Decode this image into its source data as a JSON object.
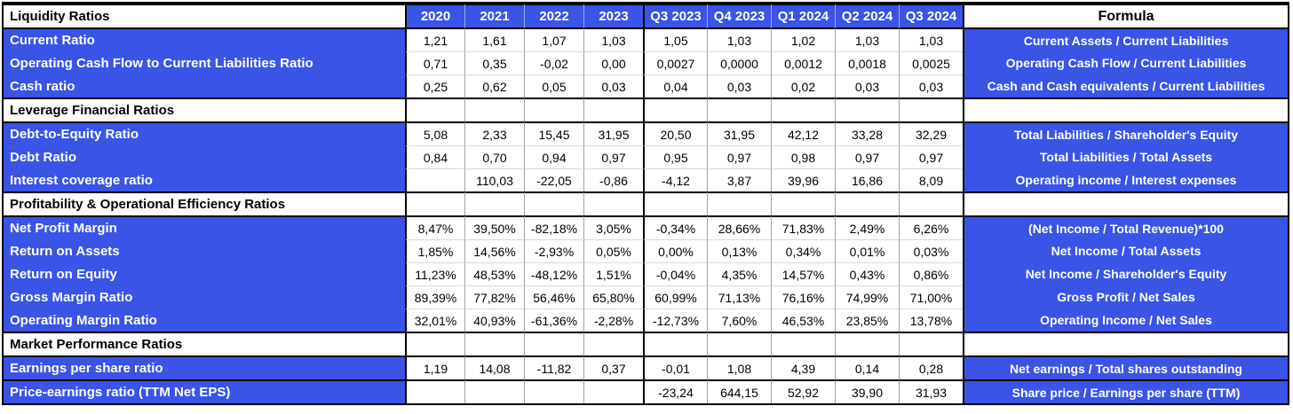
{
  "colors": {
    "accent_blue": "#3A54E6",
    "grid_black": "#000000",
    "grid_gray": "#a3a3a3",
    "grid_light": "#d8d8d8",
    "header_text_on_blue": "#ffffff",
    "header_text_on_white": "#000000"
  },
  "header": {
    "columns": [
      "2020",
      "2021",
      "2022",
      "2023",
      "Q3 2023",
      "Q4 2023",
      "Q1 2024",
      "Q2 2024",
      "Q3 2024"
    ],
    "formula_label": "Formula"
  },
  "sections": [
    {
      "title": "Liquidity Ratios",
      "rows": [
        {
          "name": "Current Ratio",
          "values": [
            "1,21",
            "1,61",
            "1,07",
            "1,03",
            "1,05",
            "1,03",
            "1,02",
            "1,03",
            "1,03"
          ],
          "formula": "Current Assets / Current Liabilities"
        },
        {
          "name": "Operating Cash Flow to Current Liabilities Ratio",
          "values": [
            "0,71",
            "0,35",
            "-0,02",
            "0,00",
            "0,0027",
            "0,0000",
            "0,0012",
            "0,0018",
            "0,0025"
          ],
          "formula": "Operating Cash Flow / Current Liabilities"
        },
        {
          "name": "Cash ratio",
          "values": [
            "0,25",
            "0,62",
            "0,05",
            "0,03",
            "0,04",
            "0,03",
            "0,02",
            "0,03",
            "0,03"
          ],
          "formula": "Cash and Cash equivalents / Current Liabilities"
        }
      ]
    },
    {
      "title": "Leverage Financial Ratios",
      "rows": [
        {
          "name": "Debt-to-Equity Ratio",
          "values": [
            "5,08",
            "2,33",
            "15,45",
            "31,95",
            "20,50",
            "31,95",
            "42,12",
            "33,28",
            "32,29"
          ],
          "formula": "Total Liabilities / Shareholder's Equity"
        },
        {
          "name": "Debt Ratio",
          "values": [
            "0,84",
            "0,70",
            "0,94",
            "0,97",
            "0,95",
            "0,97",
            "0,98",
            "0,97",
            "0,97"
          ],
          "formula": "Total Liabilities / Total Assets"
        },
        {
          "name": "Interest coverage ratio",
          "values": [
            "",
            "110,03",
            "-22,05",
            "-0,86",
            "-4,12",
            "3,87",
            "39,96",
            "16,86",
            "8,09"
          ],
          "formula": "Operating income / Interest expenses"
        }
      ]
    },
    {
      "title": "Profitability & Operational Efficiency Ratios",
      "rows": [
        {
          "name": "Net Profit Margin",
          "values": [
            "8,47%",
            "39,50%",
            "-82,18%",
            "3,05%",
            "-0,34%",
            "28,66%",
            "71,83%",
            "2,49%",
            "6,26%"
          ],
          "formula": "(Net Income / Total Revenue)*100"
        },
        {
          "name": "Return on Assets",
          "values": [
            "1,85%",
            "14,56%",
            "-2,93%",
            "0,05%",
            "0,00%",
            "0,13%",
            "0,34%",
            "0,01%",
            "0,03%"
          ],
          "formula": "Net Income / Total Assets"
        },
        {
          "name": "Return on Equity",
          "values": [
            "11,23%",
            "48,53%",
            "-48,12%",
            "1,51%",
            "-0,04%",
            "4,35%",
            "14,57%",
            "0,43%",
            "0,86%"
          ],
          "formula": "Net Income / Shareholder's Equity"
        },
        {
          "name": "Gross Margin Ratio",
          "values": [
            "89,39%",
            "77,82%",
            "56,46%",
            "65,80%",
            "60,99%",
            "71,13%",
            "76,16%",
            "74,99%",
            "71,00%"
          ],
          "formula": "Gross Profit / Net Sales"
        },
        {
          "name": "Operating Margin Ratio",
          "values": [
            "32,01%",
            "40,93%",
            "-61,36%",
            "-2,28%",
            "-12,73%",
            "7,60%",
            "46,53%",
            "23,85%",
            "13,78%"
          ],
          "formula": "Operating Income / Net Sales"
        }
      ]
    },
    {
      "title": "Market Performance Ratios",
      "rows": [
        {
          "name": "Earnings per share ratio",
          "values": [
            "1,19",
            "14,08",
            "-11,82",
            "0,37",
            "-0,01",
            "1,08",
            "4,39",
            "0,14",
            "0,28"
          ],
          "formula": "Net earnings / Total shares outstanding"
        },
        {
          "name": "Price-earnings ratio (TTM Net EPS)",
          "values": [
            "",
            "",
            "",
            "",
            "-23,24",
            "644,15",
            "52,92",
            "39,90",
            "31,93"
          ],
          "formula": "Share price / Earnings per share (TTM)",
          "thick_top": true
        }
      ]
    }
  ]
}
